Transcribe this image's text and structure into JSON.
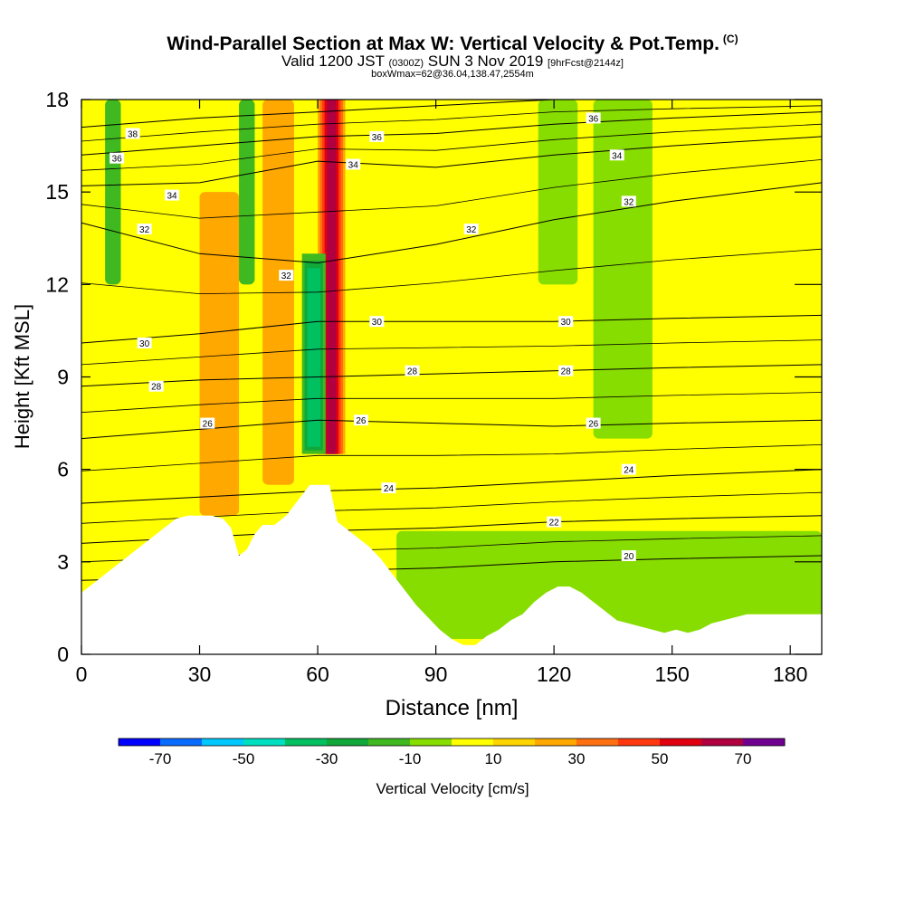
{
  "title": {
    "main": "Wind-Parallel Section at Max W: Vertical Velocity & Pot.Temp.",
    "copyright": "(C)",
    "valid_prefix": "Valid 1200 JST",
    "valid_utc": "(0300Z)",
    "valid_date": "SUN 3 Nov 2019",
    "forecast": "[9hrFcst@2144z]",
    "box_info": "boxWmax=62@36.04,138.47,2554m"
  },
  "colorbar": {
    "title": "Vertical Velocity [cm/s]",
    "tick_labels": [
      "-70",
      "-50",
      "-30",
      "-10",
      "10",
      "30",
      "50",
      "70"
    ],
    "tick_values": [
      -70,
      -50,
      -30,
      -10,
      10,
      30,
      50,
      70
    ],
    "bins": [
      -80,
      -70,
      -60,
      -50,
      -40,
      -30,
      -20,
      -10,
      0,
      10,
      20,
      30,
      40,
      50,
      60,
      70,
      80
    ],
    "colors": [
      "#0000ff",
      "#0a6cff",
      "#00c8ff",
      "#00e0c0",
      "#00c060",
      "#10a838",
      "#40b820",
      "#88dd00",
      "#ffff00",
      "#ffd400",
      "#ffa800",
      "#ff7010",
      "#ff3810",
      "#e00010",
      "#b00040",
      "#700090"
    ]
  },
  "chart_data": {
    "type": "heatmap",
    "title": "Wind-Parallel Section at Max W: Vertical Velocity & Pot.Temp.",
    "xlabel": "Distance [nm]",
    "ylabel": "Height [Kft MSL]",
    "xlim": [
      0,
      188
    ],
    "ylim": [
      0,
      18
    ],
    "x_ticks": [
      0,
      30,
      60,
      90,
      120,
      150,
      180
    ],
    "y_ticks": [
      0,
      3,
      6,
      9,
      12,
      15,
      18
    ],
    "colorbar_label": "Vertical Velocity [cm/s]",
    "terrain_profile": {
      "x": [
        0,
        3,
        6,
        9,
        12,
        15,
        18,
        21,
        24,
        27,
        30,
        33,
        36,
        38,
        40,
        42,
        44,
        46,
        49,
        52,
        55,
        58,
        61,
        63,
        65,
        68,
        70,
        73,
        76,
        79,
        82,
        85,
        88,
        91,
        94,
        97,
        100,
        103,
        106,
        109,
        112,
        115,
        118,
        121,
        124,
        127,
        130,
        133,
        136,
        139,
        142,
        145,
        148,
        151,
        154,
        157,
        160,
        163,
        166,
        169,
        172,
        175,
        178,
        181,
        184,
        188
      ],
      "y": [
        2.0,
        2.3,
        2.6,
        2.9,
        3.2,
        3.5,
        3.8,
        4.1,
        4.4,
        4.5,
        4.5,
        4.5,
        4.4,
        4.1,
        3.2,
        3.4,
        3.9,
        4.2,
        4.2,
        4.5,
        5.0,
        5.5,
        5.5,
        5.5,
        4.3,
        4.0,
        3.8,
        3.5,
        3.1,
        2.6,
        2.1,
        1.6,
        1.2,
        0.8,
        0.5,
        0.3,
        0.3,
        0.6,
        0.8,
        1.1,
        1.3,
        1.7,
        2.0,
        2.2,
        2.2,
        2.0,
        1.7,
        1.4,
        1.1,
        1.0,
        0.9,
        0.8,
        0.7,
        0.8,
        0.7,
        0.8,
        1.0,
        1.1,
        1.2,
        1.3,
        1.3,
        1.3,
        1.3,
        1.3,
        1.3,
        1.3
      ]
    },
    "theta_contours": [
      {
        "label": "20",
        "x": [
          0,
          30,
          60,
          90,
          120,
          150,
          188
        ],
        "y": [
          2.4,
          2.5,
          2.7,
          2.8,
          3.0,
          3.1,
          3.2
        ]
      },
      {
        "label": "22",
        "x": [
          0,
          30,
          60,
          90,
          120,
          150,
          188
        ],
        "y": [
          3.6,
          3.8,
          4.0,
          4.1,
          4.3,
          4.4,
          4.5
        ]
      },
      {
        "label": "24",
        "x": [
          0,
          30,
          60,
          90,
          120,
          150,
          188
        ],
        "y": [
          4.9,
          5.1,
          5.3,
          5.4,
          5.6,
          5.8,
          6.0
        ]
      },
      {
        "label": "26",
        "x": [
          0,
          30,
          60,
          90,
          120,
          150,
          188
        ],
        "y": [
          7.0,
          7.3,
          7.6,
          7.5,
          7.4,
          7.5,
          7.6
        ]
      },
      {
        "label": "28",
        "x": [
          0,
          30,
          60,
          90,
          120,
          150,
          188
        ],
        "y": [
          8.7,
          8.9,
          9.0,
          9.1,
          9.2,
          9.3,
          9.4
        ]
      },
      {
        "label": "30",
        "x": [
          0,
          30,
          60,
          90,
          120,
          150,
          188
        ],
        "y": [
          10.1,
          10.4,
          10.8,
          10.8,
          10.8,
          10.9,
          11.0
        ]
      },
      {
        "label": "32",
        "x": [
          0,
          30,
          60,
          90,
          120,
          150,
          188
        ],
        "y": [
          14.0,
          13.0,
          12.7,
          13.3,
          14.1,
          14.7,
          15.3
        ]
      },
      {
        "label": "34",
        "x": [
          0,
          30,
          60,
          90,
          120,
          150,
          188
        ],
        "y": [
          15.2,
          15.3,
          16.0,
          15.8,
          16.2,
          16.5,
          16.8
        ]
      },
      {
        "label": "36",
        "x": [
          0,
          30,
          60,
          90,
          120,
          150,
          188
        ],
        "y": [
          16.2,
          16.5,
          16.8,
          16.9,
          17.2,
          17.4,
          17.6
        ]
      },
      {
        "label": "38",
        "x": [
          0,
          30,
          60,
          90,
          120,
          150,
          188
        ],
        "y": [
          17.1,
          17.4,
          17.6,
          17.8,
          18.0,
          18.0,
          18.0
        ]
      }
    ],
    "contour_label_positions": [
      {
        "text": "38",
        "x": 13,
        "y": 16.9
      },
      {
        "text": "36",
        "x": 9,
        "y": 16.1
      },
      {
        "text": "34",
        "x": 23,
        "y": 14.9
      },
      {
        "text": "32",
        "x": 16,
        "y": 13.8
      },
      {
        "text": "32",
        "x": 52,
        "y": 12.3
      },
      {
        "text": "30",
        "x": 16,
        "y": 10.1
      },
      {
        "text": "28",
        "x": 19,
        "y": 8.7
      },
      {
        "text": "26",
        "x": 32,
        "y": 7.5
      },
      {
        "text": "36",
        "x": 75,
        "y": 16.8
      },
      {
        "text": "34",
        "x": 69,
        "y": 15.9
      },
      {
        "text": "30",
        "x": 75,
        "y": 10.8
      },
      {
        "text": "28",
        "x": 84,
        "y": 9.2
      },
      {
        "text": "26",
        "x": 71,
        "y": 7.6
      },
      {
        "text": "24",
        "x": 78,
        "y": 5.4
      },
      {
        "text": "32",
        "x": 99,
        "y": 13.8
      },
      {
        "text": "36",
        "x": 130,
        "y": 17.4
      },
      {
        "text": "34",
        "x": 136,
        "y": 16.2
      },
      {
        "text": "32",
        "x": 139,
        "y": 14.7
      },
      {
        "text": "30",
        "x": 123,
        "y": 10.8
      },
      {
        "text": "28",
        "x": 123,
        "y": 9.2
      },
      {
        "text": "26",
        "x": 130,
        "y": 7.5
      },
      {
        "text": "24",
        "x": 139,
        "y": 6.0
      },
      {
        "text": "22",
        "x": 120,
        "y": 4.3
      },
      {
        "text": "20",
        "x": 139,
        "y": 3.2
      }
    ],
    "velocity_features": [
      {
        "kind": "updraft core",
        "value_max_cm_s": 62,
        "x_range": [
          60,
          67
        ],
        "y_range": [
          6.5,
          18
        ]
      },
      {
        "kind": "downdraft core",
        "value_min_cm_s": -40,
        "x_range": [
          56,
          62
        ],
        "y_range": [
          6.5,
          13
        ]
      },
      {
        "kind": "weak updraft band",
        "value_cm_s": 25,
        "x_range": [
          30,
          40
        ],
        "y_range": [
          4.5,
          15
        ]
      },
      {
        "kind": "weak updraft band",
        "value_cm_s": 20,
        "x_range": [
          46,
          54
        ],
        "y_range": [
          5.5,
          18
        ]
      },
      {
        "kind": "weak downdraft",
        "value_cm_s": -15,
        "x_range": [
          6,
          10
        ],
        "y_range": [
          12,
          18
        ]
      },
      {
        "kind": "weak downdraft",
        "value_cm_s": -15,
        "x_range": [
          40,
          44
        ],
        "y_range": [
          12,
          18
        ]
      },
      {
        "kind": "weak downdraft layer",
        "value_cm_s": -8,
        "x_range": [
          80,
          188
        ],
        "y_range": [
          0.5,
          4
        ]
      },
      {
        "kind": "weak downdraft",
        "value_cm_s": -8,
        "x_range": [
          116,
          126
        ],
        "y_range": [
          12,
          18
        ]
      },
      {
        "kind": "weak downdraft",
        "value_cm_s": -8,
        "x_range": [
          130,
          145
        ],
        "y_range": [
          7,
          18
        ]
      }
    ]
  }
}
